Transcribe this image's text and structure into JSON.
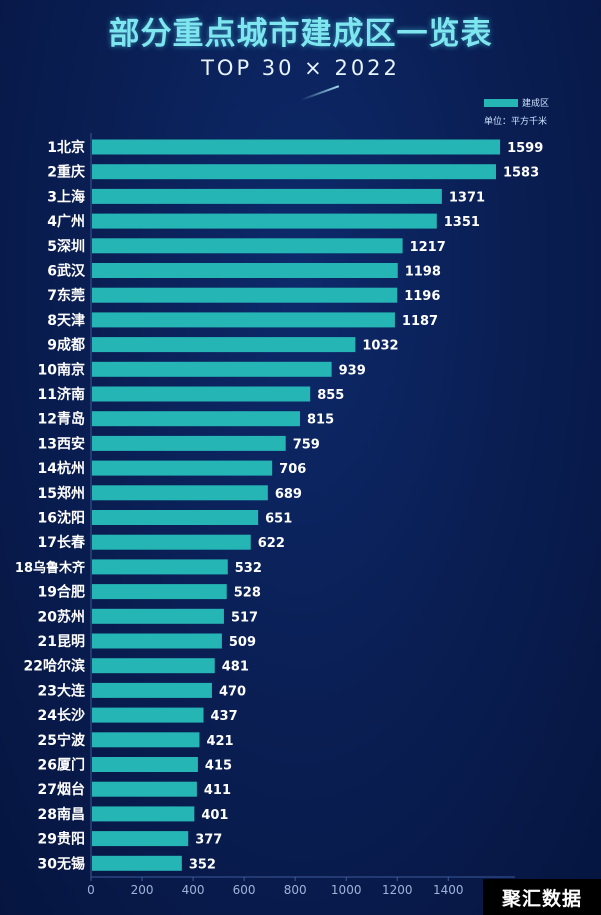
{
  "title": "部分重点城市建成区一览表",
  "subtitle": "TOP 30 × 2022",
  "legend": {
    "label": "建成区",
    "unit": "单位：平方千米"
  },
  "watermark": "聚汇数据",
  "colors": {
    "bar": "#25b5b5",
    "background": "#0a1f55",
    "title": "#7fe6f0"
  },
  "chart_data": {
    "type": "bar",
    "orientation": "horizontal",
    "title": "部分重点城市建成区一览表",
    "subtitle": "TOP 30 × 2022",
    "categories": [
      "1北京",
      "2重庆",
      "3上海",
      "4广州",
      "5深圳",
      "6武汉",
      "7东莞",
      "8天津",
      "9成都",
      "10南京",
      "11济南",
      "12青岛",
      "13西安",
      "14杭州",
      "15郑州",
      "16沈阳",
      "17长春",
      "18乌鲁木齐",
      "19合肥",
      "20苏州",
      "21昆明",
      "22哈尔滨",
      "23大连",
      "24长沙",
      "25宁波",
      "26厦门",
      "27烟台",
      "28南昌",
      "29贵阳",
      "30无锡"
    ],
    "series": [
      {
        "name": "建成区",
        "values": [
          1599,
          1583,
          1371,
          1351,
          1217,
          1198,
          1196,
          1187,
          1032,
          939,
          855,
          815,
          759,
          706,
          689,
          651,
          622,
          532,
          528,
          517,
          509,
          481,
          470,
          437,
          421,
          415,
          411,
          401,
          377,
          352
        ]
      }
    ],
    "xticks": [
      "0",
      "200",
      "400",
      "600",
      "800",
      "1000",
      "1200",
      "1400"
    ],
    "xlim": [
      0,
      1600
    ],
    "unit": "单位：平方千米",
    "legend_position": "top-right",
    "grid": false
  }
}
